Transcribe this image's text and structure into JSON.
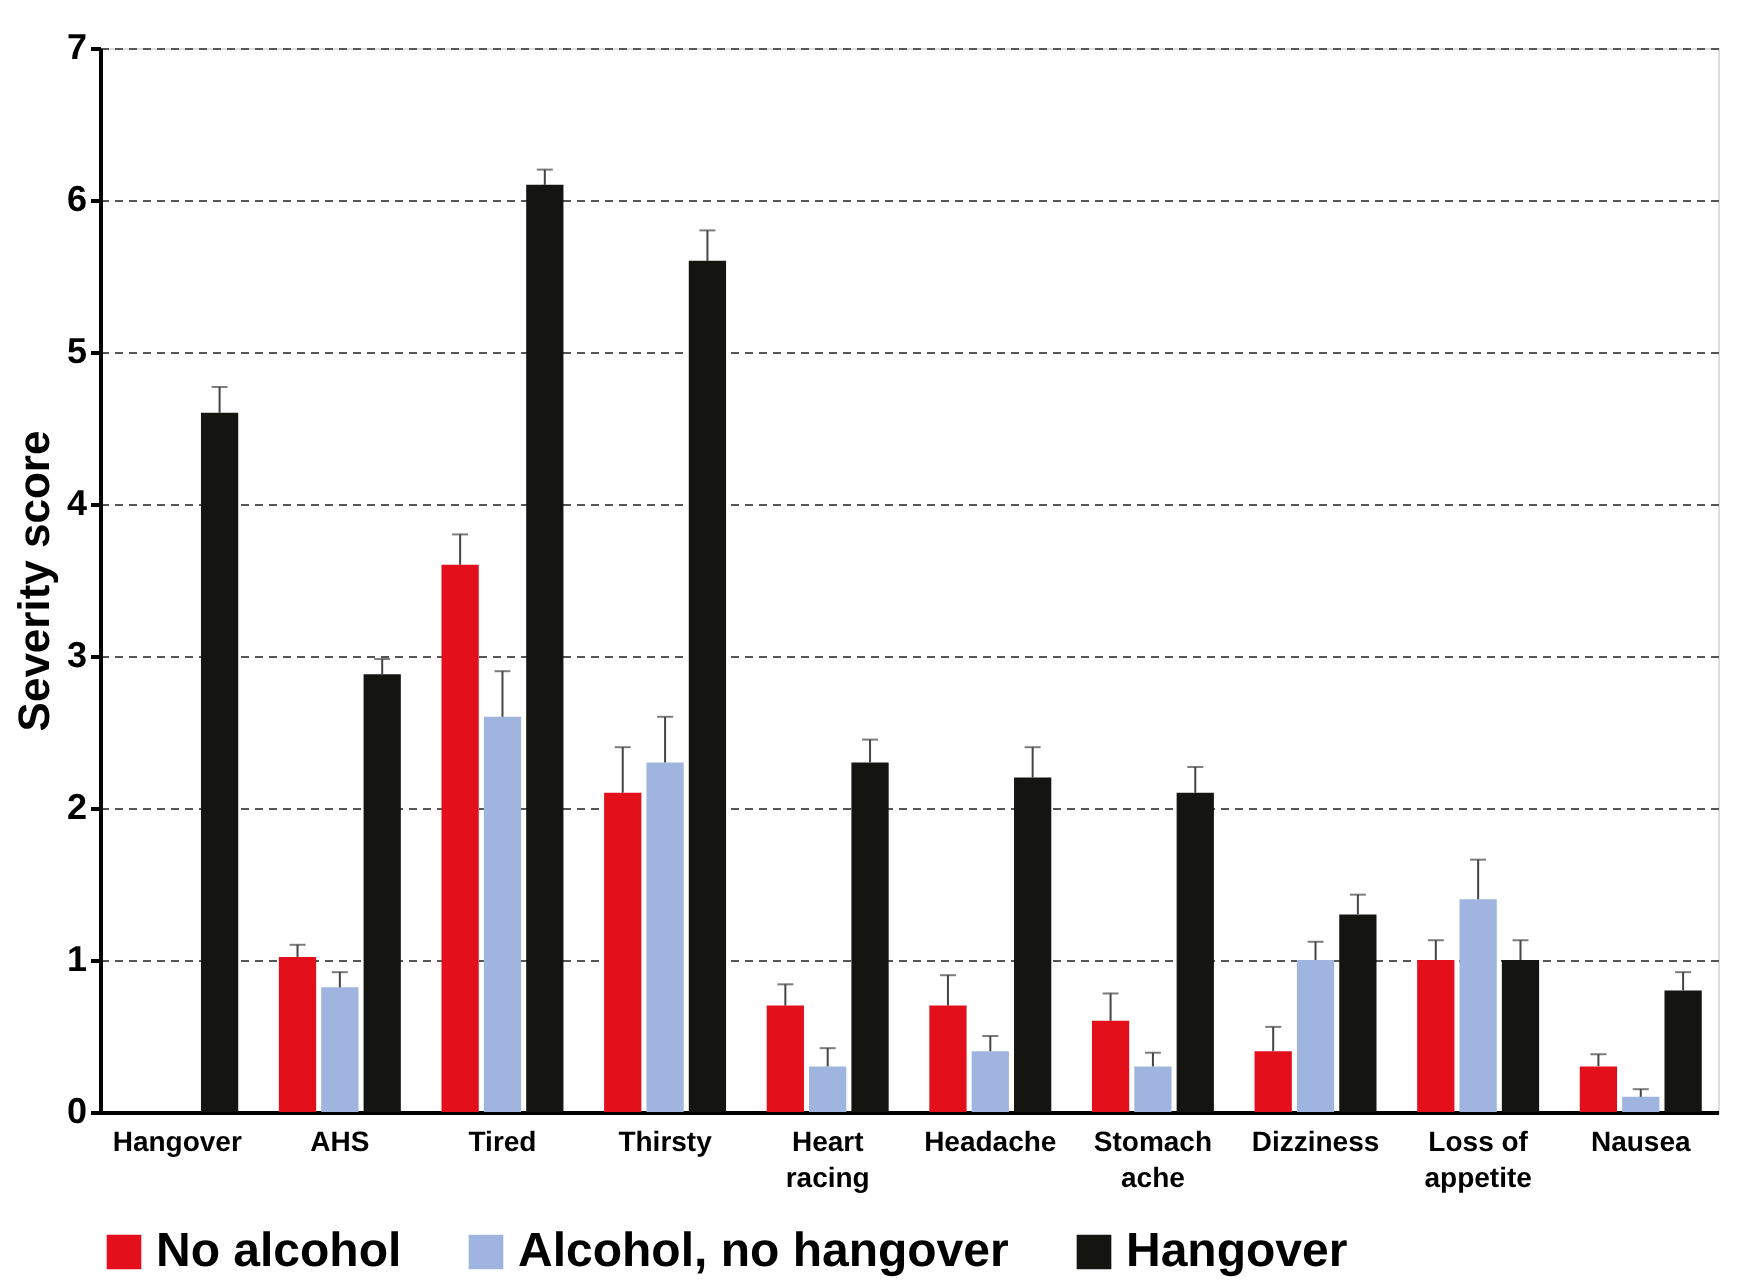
{
  "chart_data": {
    "type": "bar",
    "ylabel": "Severity score",
    "categories": [
      "Hangover",
      "AHS",
      "Tired",
      "Thirsty",
      "Heart\nracing",
      "Headache",
      "Stomach\nache",
      "Dizziness",
      "Loss of\nappetite",
      "Nausea"
    ],
    "series": [
      {
        "name": "No alcohol",
        "color": "#e3101c",
        "values": [
          null,
          1.02,
          3.6,
          2.1,
          0.7,
          0.7,
          0.6,
          0.4,
          1.0,
          0.3
        ],
        "errors": [
          null,
          [
            1.02,
            1.1
          ],
          [
            3.6,
            3.8
          ],
          [
            2.1,
            2.4
          ],
          [
            0.7,
            0.84
          ],
          [
            0.7,
            0.9
          ],
          [
            0.6,
            0.78
          ],
          [
            0.4,
            0.56
          ],
          [
            1.0,
            1.13
          ],
          [
            0.3,
            0.38
          ]
        ]
      },
      {
        "name": "Alcohol, no hangover",
        "color": "#9fb4de",
        "values": [
          null,
          0.82,
          2.6,
          2.3,
          0.3,
          0.4,
          0.3,
          1.0,
          1.4,
          0.1
        ],
        "errors": [
          null,
          [
            0.82,
            0.92
          ],
          [
            2.6,
            2.9
          ],
          [
            2.3,
            2.6
          ],
          [
            0.3,
            0.42
          ],
          [
            0.4,
            0.5
          ],
          [
            0.3,
            0.39
          ],
          [
            1.0,
            1.12
          ],
          [
            1.4,
            1.66
          ],
          [
            0.1,
            0.15
          ]
        ]
      },
      {
        "name": "Hangover",
        "color": "#141410",
        "values": [
          4.6,
          2.88,
          6.1,
          5.6,
          2.3,
          2.2,
          2.1,
          1.3,
          1.0,
          0.8
        ],
        "errors": [
          [
            4.6,
            4.77
          ],
          [
            2.88,
            2.98
          ],
          [
            6.1,
            6.2
          ],
          [
            5.6,
            5.8
          ],
          [
            2.3,
            2.45
          ],
          [
            2.2,
            2.4
          ],
          [
            2.1,
            2.27
          ],
          [
            1.3,
            1.43
          ],
          [
            1.0,
            1.13
          ],
          [
            0.8,
            0.92
          ]
        ]
      }
    ],
    "ylim": [
      0,
      7
    ],
    "yticks": [
      0,
      1,
      2,
      3,
      4,
      5,
      6,
      7
    ],
    "grid": "y",
    "legend": "bottom"
  }
}
